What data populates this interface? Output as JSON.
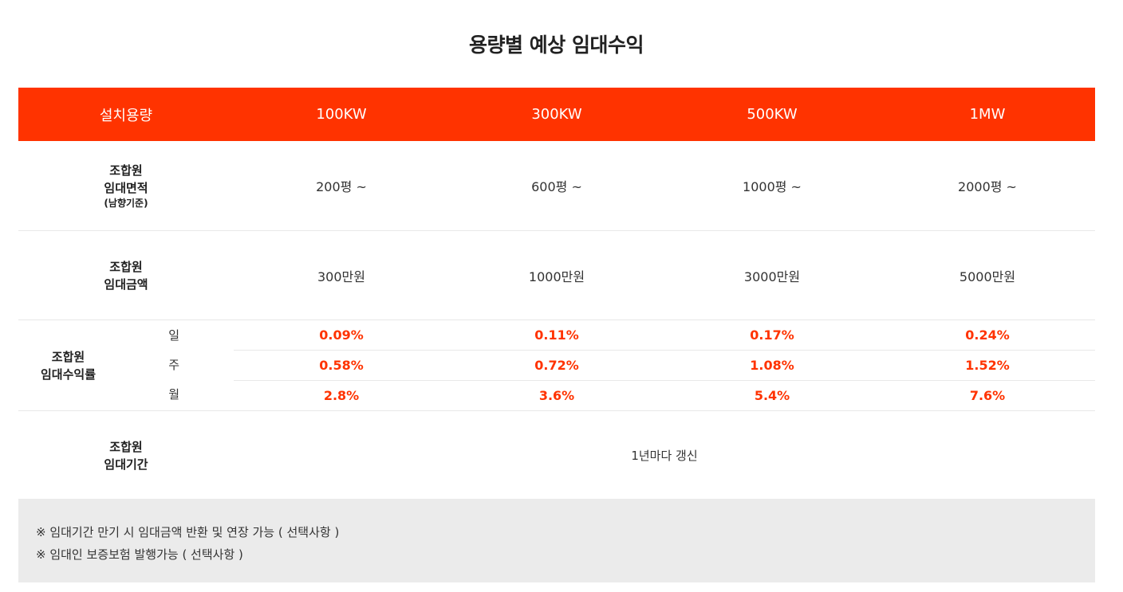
{
  "title": "용량별 예상 임대수익",
  "header": {
    "label": "설치용량",
    "capacities": [
      "100KW",
      "300KW",
      "500KW",
      "1MW"
    ]
  },
  "area": {
    "label_line1": "조합원",
    "label_line2": "임대면적",
    "label_note": "(남향기준)",
    "values": [
      "200평 ~",
      "600평 ~",
      "1000평 ~",
      "2000평 ~"
    ]
  },
  "amount": {
    "label_line1": "조합원",
    "label_line2": "임대금액",
    "values": [
      "300만원",
      "1000만원",
      "3000만원",
      "5000만원"
    ]
  },
  "rate": {
    "label_line1": "조합원",
    "label_line2": "임대수익률",
    "rows": [
      {
        "period": "일",
        "values": [
          "0.09%",
          "0.11%",
          "0.17%",
          "0.24%"
        ]
      },
      {
        "period": "주",
        "values": [
          "0.58%",
          "0.72%",
          "1.08%",
          "1.52%"
        ]
      },
      {
        "period": "월",
        "values": [
          "2.8%",
          "3.6%",
          "5.4%",
          "7.6%"
        ]
      }
    ]
  },
  "term": {
    "label_line1": "조합원",
    "label_line2": "임대기간",
    "value": "1년마다 갱신"
  },
  "notes": [
    "※ 임대기간 만기 시 임대금액 반환 및 연장 가능 ( 선택사항 )",
    "※ 임대인 보증보험 발행가능 ( 선택사항 )"
  ],
  "colors": {
    "accent": "#ff3300",
    "notes_background": "#ebebeb"
  }
}
